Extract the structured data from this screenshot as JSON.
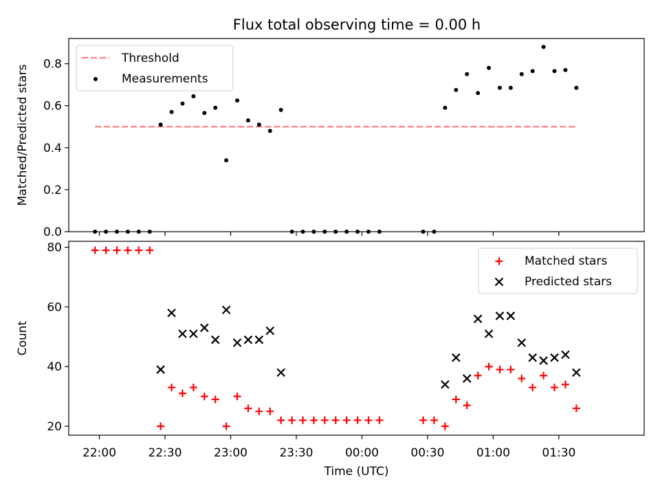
{
  "chart_data": [
    {
      "type": "scatter",
      "title": "Flux total observing time = 0.00 h",
      "xlabel": "",
      "ylabel": "Matched/Predicted stars",
      "ylim": [
        0,
        0.92
      ],
      "yticks": [
        "0.0",
        "0.2",
        "0.4",
        "0.6",
        "0.8"
      ],
      "legend": {
        "placement": "top-left",
        "entries": [
          "Threshold",
          "Measurements"
        ]
      },
      "threshold": {
        "name": "Threshold",
        "value": 0.5,
        "x_start": "21:58",
        "x_end": "01:38",
        "color": "#ff8080",
        "style": "dashed"
      },
      "series": [
        {
          "name": "Measurements",
          "color": "#000000",
          "marker": "dot",
          "points": [
            [
              "21:58",
              0.0
            ],
            [
              "22:03",
              0.0
            ],
            [
              "22:08",
              0.0
            ],
            [
              "22:13",
              0.0
            ],
            [
              "22:18",
              0.0
            ],
            [
              "22:23",
              0.0
            ],
            [
              "22:28",
              0.51
            ],
            [
              "22:33",
              0.57
            ],
            [
              "22:38",
              0.61
            ],
            [
              "22:43",
              0.645
            ],
            [
              "22:48",
              0.565
            ],
            [
              "22:53",
              0.59
            ],
            [
              "22:58",
              0.34
            ],
            [
              "23:03",
              0.625
            ],
            [
              "23:08",
              0.53
            ],
            [
              "23:13",
              0.51
            ],
            [
              "23:18",
              0.48
            ],
            [
              "23:23",
              0.58
            ],
            [
              "23:28",
              0.0
            ],
            [
              "23:33",
              0.0
            ],
            [
              "23:38",
              0.0
            ],
            [
              "23:43",
              0.0
            ],
            [
              "23:48",
              0.0
            ],
            [
              "23:53",
              0.0
            ],
            [
              "23:58",
              0.0
            ],
            [
              "00:03",
              0.0
            ],
            [
              "00:08",
              0.0
            ],
            [
              "00:28",
              0.0
            ],
            [
              "00:33",
              0.0
            ],
            [
              "00:38",
              0.59
            ],
            [
              "00:43",
              0.675
            ],
            [
              "00:48",
              0.75
            ],
            [
              "00:53",
              0.66
            ],
            [
              "00:58",
              0.78
            ],
            [
              "01:03",
              0.685
            ],
            [
              "01:08",
              0.685
            ],
            [
              "01:13",
              0.75
            ],
            [
              "01:18",
              0.765
            ],
            [
              "01:23",
              0.88
            ],
            [
              "01:28",
              0.765
            ],
            [
              "01:33",
              0.77
            ],
            [
              "01:38",
              0.685
            ]
          ]
        }
      ]
    },
    {
      "type": "scatter",
      "title": "",
      "xlabel": "Time (UTC)",
      "ylabel": "Count",
      "ylim": [
        17,
        82
      ],
      "yticks": [
        "20",
        "40",
        "60",
        "80"
      ],
      "xticks": [
        "22:00",
        "22:30",
        "23:00",
        "23:30",
        "00:00",
        "00:30",
        "01:00",
        "01:30"
      ],
      "xlim": [
        "21:46",
        "02:09"
      ],
      "legend": {
        "placement": "top-right",
        "entries": [
          "Matched stars",
          "Predicted stars"
        ]
      },
      "series": [
        {
          "name": "Matched stars",
          "color": "#ff0000",
          "marker": "plus",
          "points": [
            [
              "21:58",
              79
            ],
            [
              "22:03",
              79
            ],
            [
              "22:08",
              79
            ],
            [
              "22:13",
              79
            ],
            [
              "22:18",
              79
            ],
            [
              "22:23",
              79
            ],
            [
              "22:28",
              20
            ],
            [
              "22:33",
              33
            ],
            [
              "22:38",
              31
            ],
            [
              "22:43",
              33
            ],
            [
              "22:48",
              30
            ],
            [
              "22:53",
              29
            ],
            [
              "22:58",
              20
            ],
            [
              "23:03",
              30
            ],
            [
              "23:08",
              26
            ],
            [
              "23:13",
              25
            ],
            [
              "23:18",
              25
            ],
            [
              "23:23",
              22
            ],
            [
              "23:28",
              22
            ],
            [
              "23:33",
              22
            ],
            [
              "23:38",
              22
            ],
            [
              "23:43",
              22
            ],
            [
              "23:48",
              22
            ],
            [
              "23:53",
              22
            ],
            [
              "23:58",
              22
            ],
            [
              "00:03",
              22
            ],
            [
              "00:08",
              22
            ],
            [
              "00:28",
              22
            ],
            [
              "00:33",
              22
            ],
            [
              "00:38",
              20
            ],
            [
              "00:43",
              29
            ],
            [
              "00:48",
              27
            ],
            [
              "00:53",
              37
            ],
            [
              "00:58",
              40
            ],
            [
              "01:03",
              39
            ],
            [
              "01:08",
              39
            ],
            [
              "01:13",
              36
            ],
            [
              "01:18",
              33
            ],
            [
              "01:23",
              37
            ],
            [
              "01:28",
              33
            ],
            [
              "01:33",
              34
            ],
            [
              "01:38",
              26
            ]
          ]
        },
        {
          "name": "Predicted stars",
          "color": "#000000",
          "marker": "x",
          "points": [
            [
              "22:28",
              39
            ],
            [
              "22:33",
              58
            ],
            [
              "22:38",
              51
            ],
            [
              "22:43",
              51
            ],
            [
              "22:48",
              53
            ],
            [
              "22:53",
              49
            ],
            [
              "22:58",
              59
            ],
            [
              "23:03",
              48
            ],
            [
              "23:08",
              49
            ],
            [
              "23:13",
              49
            ],
            [
              "23:18",
              52
            ],
            [
              "23:23",
              38
            ],
            [
              "00:38",
              34
            ],
            [
              "00:43",
              43
            ],
            [
              "00:48",
              36
            ],
            [
              "00:53",
              56
            ],
            [
              "00:58",
              51
            ],
            [
              "01:03",
              57
            ],
            [
              "01:08",
              57
            ],
            [
              "01:13",
              48
            ],
            [
              "01:18",
              43
            ],
            [
              "01:23",
              42
            ],
            [
              "01:28",
              43
            ],
            [
              "01:33",
              44
            ],
            [
              "01:38",
              38
            ]
          ]
        }
      ]
    }
  ]
}
